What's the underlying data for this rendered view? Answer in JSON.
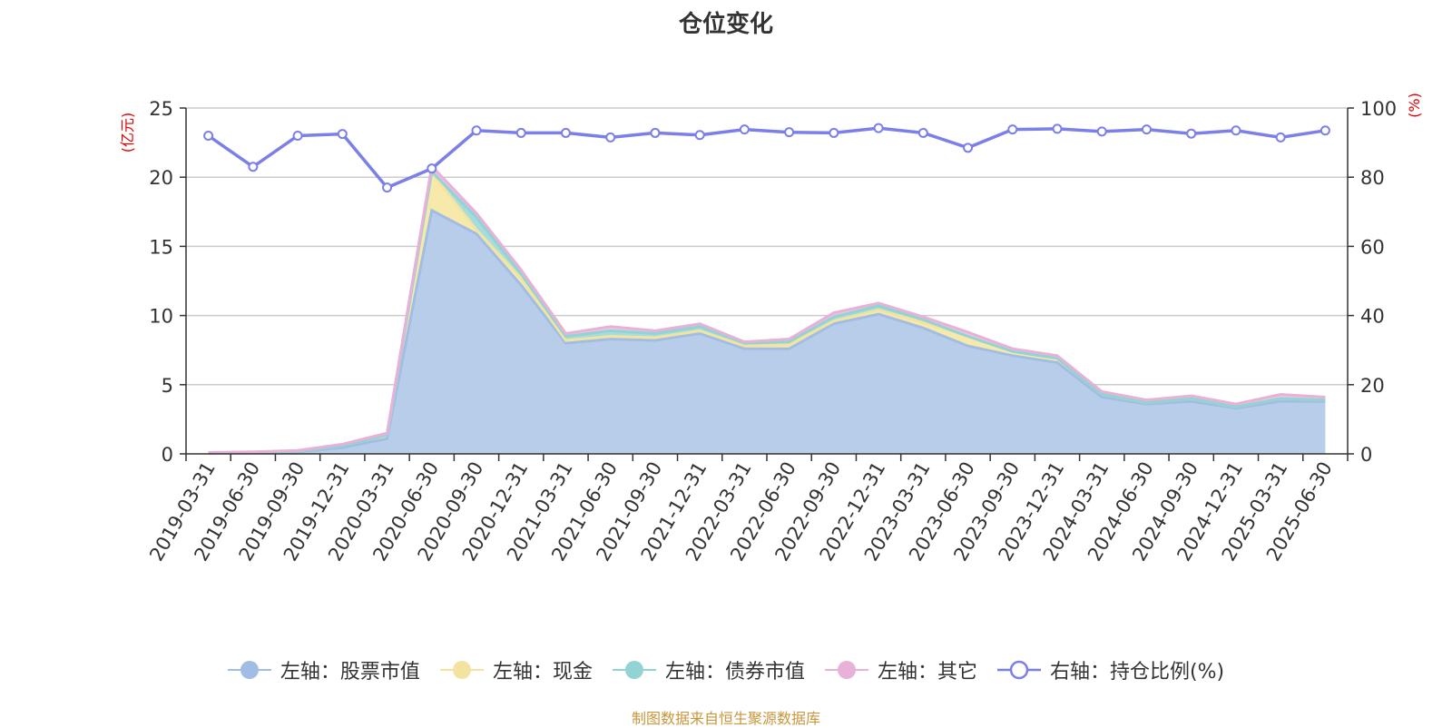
{
  "chart_data": {
    "type": "area",
    "title": "仓位变化",
    "left_axis_label": "(亿元)",
    "right_axis_label": "(%)",
    "ylim_left": [
      0,
      25
    ],
    "yticks_left": [
      "0",
      "5",
      "10",
      "15",
      "20",
      "25"
    ],
    "ylim_right": [
      0,
      100
    ],
    "yticks_right": [
      "0",
      "20",
      "40",
      "60",
      "80",
      "100"
    ],
    "grid": true,
    "legend_position": "bottom",
    "categories": [
      "2019-03-31",
      "2019-06-30",
      "2019-09-30",
      "2019-12-31",
      "2020-03-31",
      "2020-06-30",
      "2020-09-30",
      "2020-12-31",
      "2021-03-31",
      "2021-06-30",
      "2021-09-30",
      "2021-12-31",
      "2022-03-31",
      "2022-06-30",
      "2022-09-30",
      "2022-12-31",
      "2023-03-31",
      "2023-06-30",
      "2023-09-30",
      "2023-12-31",
      "2024-03-31",
      "2024-06-30",
      "2024-09-30",
      "2024-12-31",
      "2025-03-31",
      "2025-06-30"
    ],
    "stacked_series": [
      {
        "name": "左轴：股票市值",
        "axis": "left",
        "color": "#a2bde4",
        "fill": "#b8cde9",
        "values": [
          0.05,
          0.07,
          0.15,
          0.45,
          1.1,
          17.6,
          15.9,
          12.2,
          8.0,
          8.3,
          8.2,
          8.7,
          7.6,
          7.6,
          9.4,
          10.1,
          9.1,
          7.8,
          7.1,
          6.6,
          4.1,
          3.6,
          3.8,
          3.3,
          3.8,
          3.8
        ]
      },
      {
        "name": "左轴：现金",
        "axis": "left",
        "color": "#f2e3a0",
        "fill": "#f7e9aa",
        "values": [
          0.02,
          0.03,
          0.05,
          0.15,
          0.25,
          2.7,
          0.3,
          0.5,
          0.2,
          0.2,
          0.2,
          0.2,
          0.2,
          0.3,
          0.2,
          0.3,
          0.4,
          0.7,
          0.3,
          0.3,
          0.2,
          0.1,
          0.2,
          0.1,
          0.2,
          0.1
        ]
      },
      {
        "name": "左轴：债券市值",
        "axis": "left",
        "color": "#92d3d4",
        "fill": "#a5dcdd",
        "values": [
          0,
          0,
          0,
          0,
          0,
          0.1,
          0.9,
          0.3,
          0.3,
          0.4,
          0.3,
          0.3,
          0.2,
          0.2,
          0.3,
          0.3,
          0.2,
          0,
          0,
          0,
          0,
          0,
          0,
          0,
          0,
          0
        ]
      },
      {
        "name": "左轴：其它",
        "axis": "left",
        "color": "#e8b1d8",
        "fill": "#f0c6e3",
        "values": [
          0.03,
          0.05,
          0.05,
          0.1,
          0.15,
          0.4,
          0.3,
          0.3,
          0.2,
          0.3,
          0.2,
          0.2,
          0.1,
          0.2,
          0.3,
          0.2,
          0.2,
          0.3,
          0.2,
          0.2,
          0.2,
          0.2,
          0.2,
          0.2,
          0.3,
          0.2
        ]
      }
    ],
    "line_series": [
      {
        "name": "右轴：持仓比例(%)",
        "axis": "right",
        "color": "#7b7fe8",
        "values": [
          92.0,
          83.0,
          92.0,
          92.5,
          77.0,
          82.5,
          93.5,
          92.8,
          92.8,
          91.5,
          92.8,
          92.2,
          93.8,
          93.0,
          92.8,
          94.2,
          92.8,
          88.5,
          93.8,
          94.0,
          93.2,
          93.8,
          92.6,
          93.5,
          91.5,
          93.5
        ]
      }
    ],
    "source_note": "制图数据来自恒生聚源数据库"
  }
}
